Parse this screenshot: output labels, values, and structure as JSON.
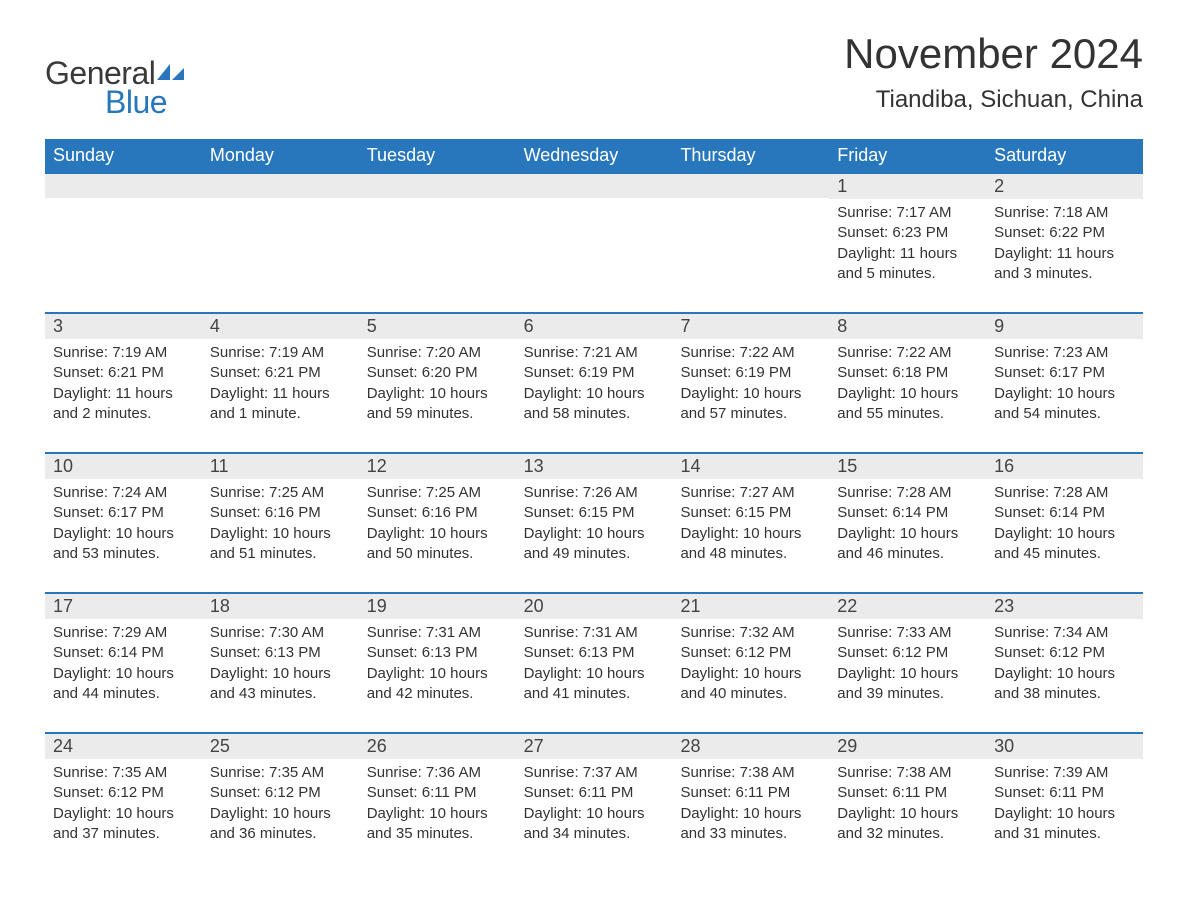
{
  "logo": {
    "general": "General",
    "blue": "Blue",
    "icon_color": "#2877bd"
  },
  "header": {
    "month_title": "November 2024",
    "location": "Tiandiba, Sichuan, China"
  },
  "colors": {
    "header_bg": "#2877bd",
    "header_text": "#ffffff",
    "daynum_bg": "#ebebeb",
    "border_top": "#2877bd",
    "body_text": "#333333",
    "page_bg": "#ffffff"
  },
  "day_names": [
    "Sunday",
    "Monday",
    "Tuesday",
    "Wednesday",
    "Thursday",
    "Friday",
    "Saturday"
  ],
  "weeks": [
    [
      {
        "empty": true
      },
      {
        "empty": true
      },
      {
        "empty": true
      },
      {
        "empty": true
      },
      {
        "empty": true
      },
      {
        "day": "1",
        "sunrise": "Sunrise: 7:17 AM",
        "sunset": "Sunset: 6:23 PM",
        "daylight1": "Daylight: 11 hours",
        "daylight2": "and 5 minutes."
      },
      {
        "day": "2",
        "sunrise": "Sunrise: 7:18 AM",
        "sunset": "Sunset: 6:22 PM",
        "daylight1": "Daylight: 11 hours",
        "daylight2": "and 3 minutes."
      }
    ],
    [
      {
        "day": "3",
        "sunrise": "Sunrise: 7:19 AM",
        "sunset": "Sunset: 6:21 PM",
        "daylight1": "Daylight: 11 hours",
        "daylight2": "and 2 minutes."
      },
      {
        "day": "4",
        "sunrise": "Sunrise: 7:19 AM",
        "sunset": "Sunset: 6:21 PM",
        "daylight1": "Daylight: 11 hours",
        "daylight2": "and 1 minute."
      },
      {
        "day": "5",
        "sunrise": "Sunrise: 7:20 AM",
        "sunset": "Sunset: 6:20 PM",
        "daylight1": "Daylight: 10 hours",
        "daylight2": "and 59 minutes."
      },
      {
        "day": "6",
        "sunrise": "Sunrise: 7:21 AM",
        "sunset": "Sunset: 6:19 PM",
        "daylight1": "Daylight: 10 hours",
        "daylight2": "and 58 minutes."
      },
      {
        "day": "7",
        "sunrise": "Sunrise: 7:22 AM",
        "sunset": "Sunset: 6:19 PM",
        "daylight1": "Daylight: 10 hours",
        "daylight2": "and 57 minutes."
      },
      {
        "day": "8",
        "sunrise": "Sunrise: 7:22 AM",
        "sunset": "Sunset: 6:18 PM",
        "daylight1": "Daylight: 10 hours",
        "daylight2": "and 55 minutes."
      },
      {
        "day": "9",
        "sunrise": "Sunrise: 7:23 AM",
        "sunset": "Sunset: 6:17 PM",
        "daylight1": "Daylight: 10 hours",
        "daylight2": "and 54 minutes."
      }
    ],
    [
      {
        "day": "10",
        "sunrise": "Sunrise: 7:24 AM",
        "sunset": "Sunset: 6:17 PM",
        "daylight1": "Daylight: 10 hours",
        "daylight2": "and 53 minutes."
      },
      {
        "day": "11",
        "sunrise": "Sunrise: 7:25 AM",
        "sunset": "Sunset: 6:16 PM",
        "daylight1": "Daylight: 10 hours",
        "daylight2": "and 51 minutes."
      },
      {
        "day": "12",
        "sunrise": "Sunrise: 7:25 AM",
        "sunset": "Sunset: 6:16 PM",
        "daylight1": "Daylight: 10 hours",
        "daylight2": "and 50 minutes."
      },
      {
        "day": "13",
        "sunrise": "Sunrise: 7:26 AM",
        "sunset": "Sunset: 6:15 PM",
        "daylight1": "Daylight: 10 hours",
        "daylight2": "and 49 minutes."
      },
      {
        "day": "14",
        "sunrise": "Sunrise: 7:27 AM",
        "sunset": "Sunset: 6:15 PM",
        "daylight1": "Daylight: 10 hours",
        "daylight2": "and 48 minutes."
      },
      {
        "day": "15",
        "sunrise": "Sunrise: 7:28 AM",
        "sunset": "Sunset: 6:14 PM",
        "daylight1": "Daylight: 10 hours",
        "daylight2": "and 46 minutes."
      },
      {
        "day": "16",
        "sunrise": "Sunrise: 7:28 AM",
        "sunset": "Sunset: 6:14 PM",
        "daylight1": "Daylight: 10 hours",
        "daylight2": "and 45 minutes."
      }
    ],
    [
      {
        "day": "17",
        "sunrise": "Sunrise: 7:29 AM",
        "sunset": "Sunset: 6:14 PM",
        "daylight1": "Daylight: 10 hours",
        "daylight2": "and 44 minutes."
      },
      {
        "day": "18",
        "sunrise": "Sunrise: 7:30 AM",
        "sunset": "Sunset: 6:13 PM",
        "daylight1": "Daylight: 10 hours",
        "daylight2": "and 43 minutes."
      },
      {
        "day": "19",
        "sunrise": "Sunrise: 7:31 AM",
        "sunset": "Sunset: 6:13 PM",
        "daylight1": "Daylight: 10 hours",
        "daylight2": "and 42 minutes."
      },
      {
        "day": "20",
        "sunrise": "Sunrise: 7:31 AM",
        "sunset": "Sunset: 6:13 PM",
        "daylight1": "Daylight: 10 hours",
        "daylight2": "and 41 minutes."
      },
      {
        "day": "21",
        "sunrise": "Sunrise: 7:32 AM",
        "sunset": "Sunset: 6:12 PM",
        "daylight1": "Daylight: 10 hours",
        "daylight2": "and 40 minutes."
      },
      {
        "day": "22",
        "sunrise": "Sunrise: 7:33 AM",
        "sunset": "Sunset: 6:12 PM",
        "daylight1": "Daylight: 10 hours",
        "daylight2": "and 39 minutes."
      },
      {
        "day": "23",
        "sunrise": "Sunrise: 7:34 AM",
        "sunset": "Sunset: 6:12 PM",
        "daylight1": "Daylight: 10 hours",
        "daylight2": "and 38 minutes."
      }
    ],
    [
      {
        "day": "24",
        "sunrise": "Sunrise: 7:35 AM",
        "sunset": "Sunset: 6:12 PM",
        "daylight1": "Daylight: 10 hours",
        "daylight2": "and 37 minutes."
      },
      {
        "day": "25",
        "sunrise": "Sunrise: 7:35 AM",
        "sunset": "Sunset: 6:12 PM",
        "daylight1": "Daylight: 10 hours",
        "daylight2": "and 36 minutes."
      },
      {
        "day": "26",
        "sunrise": "Sunrise: 7:36 AM",
        "sunset": "Sunset: 6:11 PM",
        "daylight1": "Daylight: 10 hours",
        "daylight2": "and 35 minutes."
      },
      {
        "day": "27",
        "sunrise": "Sunrise: 7:37 AM",
        "sunset": "Sunset: 6:11 PM",
        "daylight1": "Daylight: 10 hours",
        "daylight2": "and 34 minutes."
      },
      {
        "day": "28",
        "sunrise": "Sunrise: 7:38 AM",
        "sunset": "Sunset: 6:11 PM",
        "daylight1": "Daylight: 10 hours",
        "daylight2": "and 33 minutes."
      },
      {
        "day": "29",
        "sunrise": "Sunrise: 7:38 AM",
        "sunset": "Sunset: 6:11 PM",
        "daylight1": "Daylight: 10 hours",
        "daylight2": "and 32 minutes."
      },
      {
        "day": "30",
        "sunrise": "Sunrise: 7:39 AM",
        "sunset": "Sunset: 6:11 PM",
        "daylight1": "Daylight: 10 hours",
        "daylight2": "and 31 minutes."
      }
    ]
  ]
}
